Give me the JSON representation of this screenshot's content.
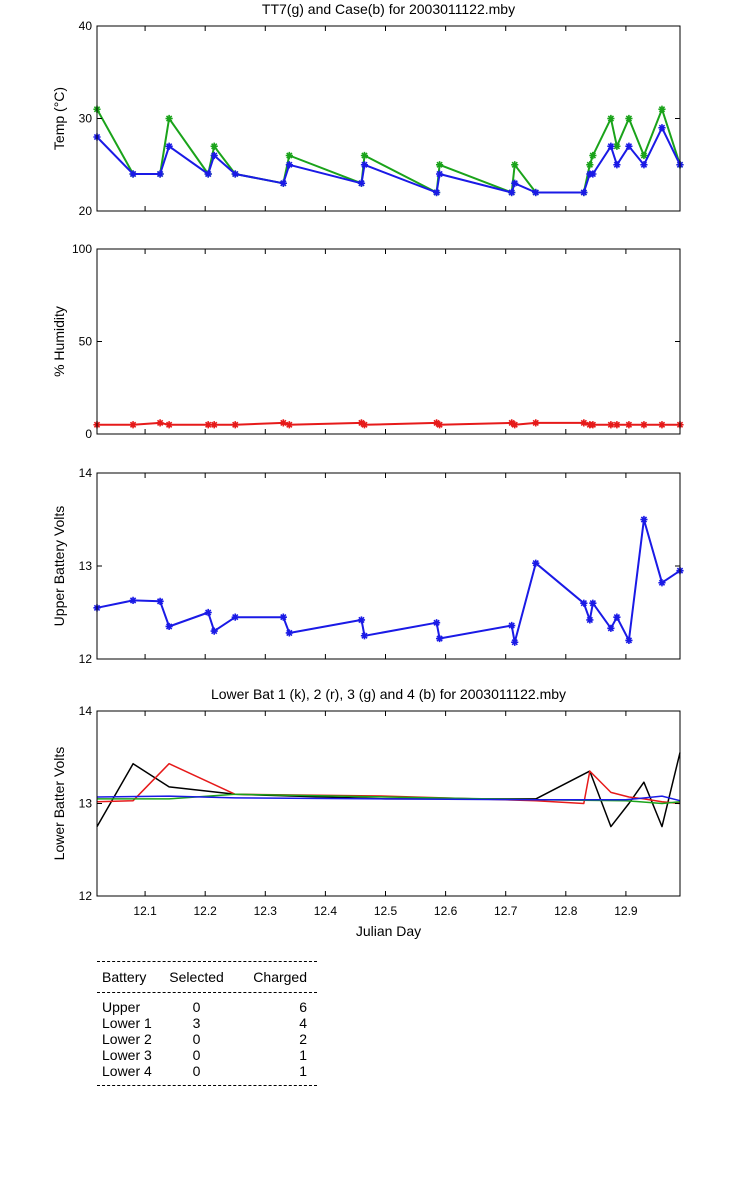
{
  "chart_data": [
    {
      "type": "line",
      "title": "TT7(g) and Case(b) for 2003011122.mby",
      "xlabel": "",
      "ylabel": "Temp  (°C)",
      "xlim": [
        12.02,
        12.99
      ],
      "ylim": [
        20,
        40
      ],
      "yticks": [
        20,
        30,
        40
      ],
      "grid": false,
      "series": [
        {
          "name": "TT7",
          "color": "#1aa31a",
          "marker": "*",
          "x": [
            12.02,
            12.08,
            12.125,
            12.14,
            12.205,
            12.215,
            12.25,
            12.33,
            12.34,
            12.46,
            12.465,
            12.585,
            12.59,
            12.71,
            12.715,
            12.75,
            12.83,
            12.84,
            12.845,
            12.875,
            12.885,
            12.905,
            12.93,
            12.96,
            12.99
          ],
          "y": [
            31,
            24,
            24,
            30,
            24,
            27,
            24,
            23,
            26,
            23,
            26,
            22,
            25,
            22,
            25,
            22,
            22,
            25,
            26,
            30,
            27,
            30,
            26,
            31,
            25
          ]
        },
        {
          "name": "Case",
          "color": "#1a1ae6",
          "marker": "*",
          "x": [
            12.02,
            12.08,
            12.125,
            12.14,
            12.205,
            12.215,
            12.25,
            12.33,
            12.34,
            12.46,
            12.465,
            12.585,
            12.59,
            12.71,
            12.715,
            12.75,
            12.83,
            12.84,
            12.845,
            12.875,
            12.885,
            12.905,
            12.93,
            12.96,
            12.99
          ],
          "y": [
            28,
            24,
            24,
            27,
            24,
            26,
            24,
            23,
            25,
            23,
            25,
            22,
            24,
            22,
            23,
            22,
            22,
            24,
            24,
            27,
            25,
            27,
            25,
            29,
            25
          ]
        }
      ]
    },
    {
      "type": "line",
      "title": "",
      "xlabel": "",
      "ylabel": "% Humidity",
      "xlim": [
        12.02,
        12.99
      ],
      "ylim": [
        0,
        100
      ],
      "yticks": [
        0,
        50,
        100
      ],
      "grid": false,
      "series": [
        {
          "name": "",
          "color": "#e61a1a",
          "marker": "*",
          "x": [
            12.02,
            12.08,
            12.125,
            12.14,
            12.205,
            12.215,
            12.25,
            12.33,
            12.34,
            12.46,
            12.465,
            12.585,
            12.59,
            12.71,
            12.715,
            12.75,
            12.83,
            12.84,
            12.845,
            12.875,
            12.885,
            12.905,
            12.93,
            12.96,
            12.99
          ],
          "y": [
            5,
            5,
            6,
            5,
            5,
            5,
            5,
            6,
            5,
            6,
            5,
            6,
            5,
            6,
            5,
            6,
            6,
            5,
            5,
            5,
            5,
            5,
            5,
            5,
            5
          ]
        }
      ]
    },
    {
      "type": "line",
      "title": "",
      "xlabel": "",
      "ylabel": "Upper Battery Volts",
      "xlim": [
        12.02,
        12.99
      ],
      "ylim": [
        12,
        14
      ],
      "yticks": [
        12,
        13,
        14
      ],
      "grid": false,
      "series": [
        {
          "name": "",
          "color": "#1a1ae6",
          "marker": "*",
          "x": [
            12.02,
            12.08,
            12.125,
            12.14,
            12.205,
            12.215,
            12.25,
            12.33,
            12.34,
            12.46,
            12.465,
            12.585,
            12.59,
            12.71,
            12.715,
            12.75,
            12.83,
            12.84,
            12.845,
            12.875,
            12.885,
            12.905,
            12.93,
            12.96,
            12.99
          ],
          "y": [
            12.55,
            12.63,
            12.62,
            12.35,
            12.5,
            12.3,
            12.45,
            12.45,
            12.28,
            12.42,
            12.25,
            12.39,
            12.22,
            12.36,
            12.18,
            13.03,
            12.6,
            12.42,
            12.6,
            12.33,
            12.45,
            12.2,
            13.5,
            12.82,
            12.95
          ]
        }
      ]
    },
    {
      "type": "line",
      "title": "Lower Bat 1 (k), 2 (r), 3 (g) and 4 (b) for 2003011122.mby",
      "xlabel": "Julian Day",
      "ylabel": "Lower Batter Volts",
      "xlim": [
        12.02,
        12.99
      ],
      "ylim": [
        12,
        14
      ],
      "yticks": [
        12,
        13,
        14
      ],
      "xticks": [
        12.1,
        12.2,
        12.3,
        12.4,
        12.5,
        12.6,
        12.7,
        12.8,
        12.9
      ],
      "grid": false,
      "series": [
        {
          "name": "1",
          "color": "#000000",
          "x": [
            12.02,
            12.08,
            12.14,
            12.25,
            12.5,
            12.75,
            12.84,
            12.875,
            12.905,
            12.93,
            12.96,
            12.99
          ],
          "y": [
            12.75,
            13.43,
            13.18,
            13.1,
            13.05,
            13.05,
            13.35,
            12.75,
            13.0,
            13.23,
            12.75,
            13.55
          ]
        },
        {
          "name": "2",
          "color": "#e61a1a",
          "x": [
            12.02,
            12.08,
            12.14,
            12.25,
            12.5,
            12.75,
            12.83,
            12.84,
            12.875,
            12.905,
            12.93,
            12.96,
            12.99
          ],
          "y": [
            13.02,
            13.03,
            13.43,
            13.1,
            13.08,
            13.03,
            13.0,
            13.35,
            13.12,
            13.07,
            13.05,
            13.02,
            13.0
          ]
        },
        {
          "name": "3",
          "color": "#1aa31a",
          "x": [
            12.02,
            12.14,
            12.25,
            12.5,
            12.75,
            12.9,
            12.96,
            12.99
          ],
          "y": [
            13.05,
            13.05,
            13.1,
            13.07,
            13.04,
            13.03,
            13.0,
            13.02
          ]
        },
        {
          "name": "4",
          "color": "#1a1ae6",
          "x": [
            12.02,
            12.14,
            12.25,
            12.5,
            12.75,
            12.9,
            12.96,
            12.99
          ],
          "y": [
            13.07,
            13.08,
            13.06,
            13.05,
            13.04,
            13.04,
            13.08,
            13.03
          ]
        }
      ]
    }
  ],
  "battery_table": {
    "headers": [
      "Battery",
      "Selected",
      "Charged"
    ],
    "rows": [
      [
        "Upper",
        "0",
        "6"
      ],
      [
        "Lower 1",
        "3",
        "4"
      ],
      [
        "Lower 2",
        "0",
        "2"
      ],
      [
        "Lower 3",
        "0",
        "1"
      ],
      [
        "Lower 4",
        "0",
        "1"
      ]
    ]
  }
}
